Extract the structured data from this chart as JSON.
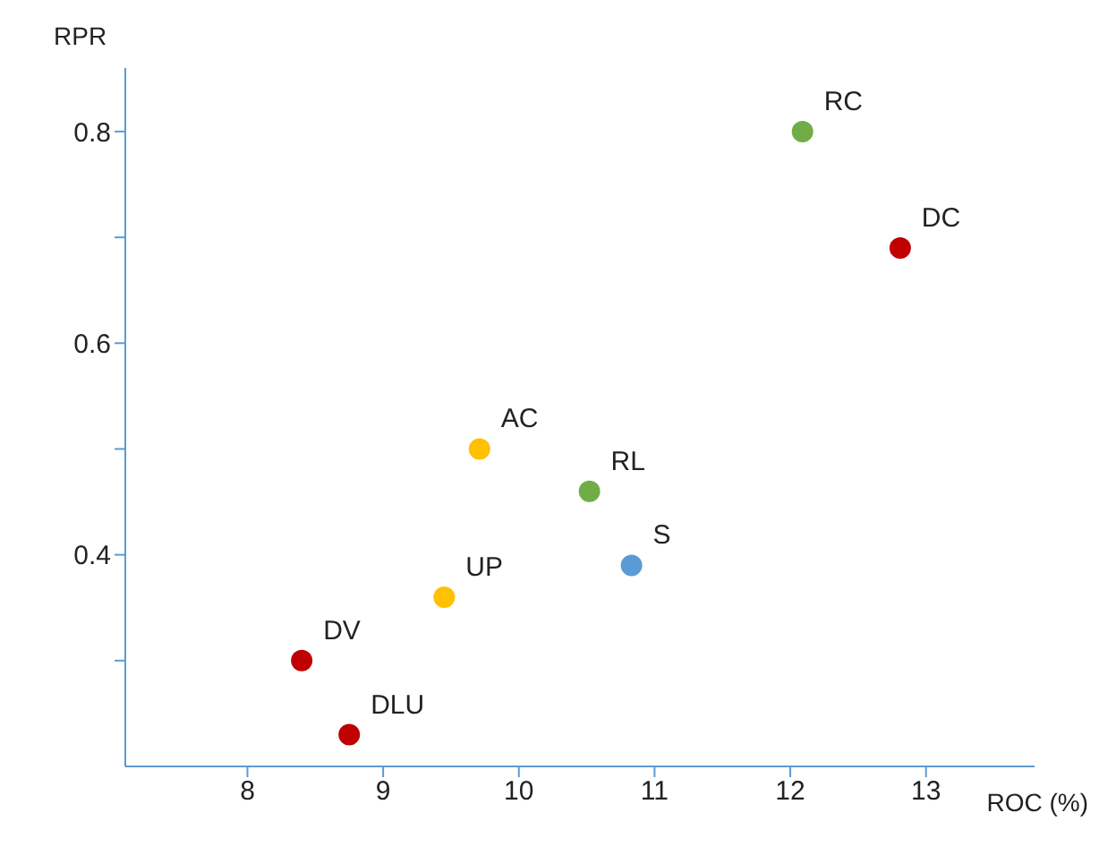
{
  "chart_data": {
    "type": "scatter",
    "xlabel": "ROC (%)",
    "ylabel": "RPR",
    "xlim": [
      7.1,
      13.8
    ],
    "xticks": [
      8,
      9,
      10,
      11,
      12,
      13
    ],
    "ylim": [
      0.2,
      0.86
    ],
    "yticks": [
      {
        "value": 0.3,
        "label": null
      },
      0.4,
      {
        "value": 0.5,
        "label": null
      },
      0.6,
      {
        "value": 0.7,
        "label": null
      },
      0.8
    ],
    "grid": false,
    "legend": false,
    "marker": "circle",
    "series": [
      {
        "name": "RC",
        "color": "#70ad47",
        "x": [
          12.09
        ],
        "values": [
          0.8
        ]
      },
      {
        "name": "DC",
        "color": "#c00000",
        "x": [
          12.81
        ],
        "values": [
          0.69
        ]
      },
      {
        "name": "AC",
        "color": "#ffc000",
        "x": [
          9.71
        ],
        "values": [
          0.5
        ]
      },
      {
        "name": "RL",
        "color": "#70ad47",
        "x": [
          10.52
        ],
        "values": [
          0.46
        ]
      },
      {
        "name": "S",
        "color": "#5b9bd5",
        "x": [
          10.83
        ],
        "values": [
          0.39
        ]
      },
      {
        "name": "UP",
        "color": "#ffc000",
        "x": [
          9.45
        ],
        "values": [
          0.36
        ]
      },
      {
        "name": "DV",
        "color": "#c00000",
        "x": [
          8.4
        ],
        "values": [
          0.3
        ]
      },
      {
        "name": "DLU",
        "color": "#c00000",
        "x": [
          8.75
        ],
        "values": [
          0.23
        ]
      }
    ]
  }
}
